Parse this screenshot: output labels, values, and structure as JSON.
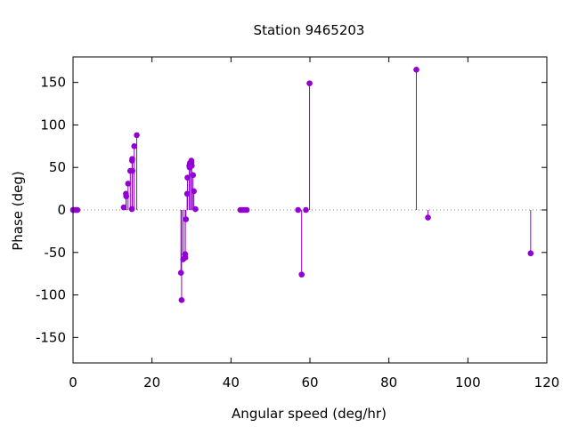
{
  "chart_data": {
    "type": "scatter",
    "title": "Station 9465203",
    "xlabel": "Angular speed (deg/hr)",
    "ylabel": "Phase (deg)",
    "xlim": [
      0,
      120
    ],
    "ylim": [
      -180,
      180
    ],
    "xticks": [
      0,
      20,
      40,
      60,
      80,
      100,
      120
    ],
    "yticks": [
      -150,
      -100,
      -50,
      0,
      50,
      100,
      150
    ],
    "xtick_labels": [
      "0",
      "20",
      "40",
      "60",
      "80",
      "100",
      "120"
    ],
    "ytick_labels": [
      "-150",
      "-100",
      "-50",
      "0",
      "50",
      "100",
      "150"
    ],
    "grid": false,
    "zero_line": "dotted",
    "style": "impulses-with-points",
    "color": "#9400d3",
    "points": [
      {
        "x": 0.0,
        "y": 0
      },
      {
        "x": 0.04,
        "y": 0
      },
      {
        "x": 0.08,
        "y": 0
      },
      {
        "x": 0.54,
        "y": 0
      },
      {
        "x": 0.82,
        "y": 0
      },
      {
        "x": 1.1,
        "y": 0
      },
      {
        "x": 12.85,
        "y": 3
      },
      {
        "x": 13.4,
        "y": 19
      },
      {
        "x": 13.47,
        "y": 16
      },
      {
        "x": 13.94,
        "y": 31
      },
      {
        "x": 14.5,
        "y": 46
      },
      {
        "x": 14.9,
        "y": 1
      },
      {
        "x": 14.96,
        "y": 58
      },
      {
        "x": 15.0,
        "y": 60
      },
      {
        "x": 15.04,
        "y": 46
      },
      {
        "x": 15.5,
        "y": 75
      },
      {
        "x": 16.14,
        "y": 88
      },
      {
        "x": 27.34,
        "y": -74
      },
      {
        "x": 27.5,
        "y": -106
      },
      {
        "x": 27.9,
        "y": -58
      },
      {
        "x": 28.4,
        "y": -52
      },
      {
        "x": 28.44,
        "y": -56
      },
      {
        "x": 28.6,
        "y": -11
      },
      {
        "x": 28.9,
        "y": 19
      },
      {
        "x": 28.99,
        "y": 38
      },
      {
        "x": 29.46,
        "y": 52
      },
      {
        "x": 29.53,
        "y": 50
      },
      {
        "x": 29.6,
        "y": 55
      },
      {
        "x": 29.96,
        "y": 58
      },
      {
        "x": 30.0,
        "y": 56
      },
      {
        "x": 30.08,
        "y": 52
      },
      {
        "x": 30.4,
        "y": 41
      },
      {
        "x": 30.6,
        "y": 22
      },
      {
        "x": 31.0,
        "y": 1
      },
      {
        "x": 42.4,
        "y": 0
      },
      {
        "x": 42.9,
        "y": 0
      },
      {
        "x": 43.5,
        "y": 0
      },
      {
        "x": 44.0,
        "y": 0
      },
      {
        "x": 57.0,
        "y": 0
      },
      {
        "x": 57.9,
        "y": -76
      },
      {
        "x": 58.98,
        "y": 0
      },
      {
        "x": 59.9,
        "y": 149
      },
      {
        "x": 86.95,
        "y": 165
      },
      {
        "x": 89.9,
        "y": -9
      },
      {
        "x": 115.9,
        "y": -51
      }
    ]
  }
}
